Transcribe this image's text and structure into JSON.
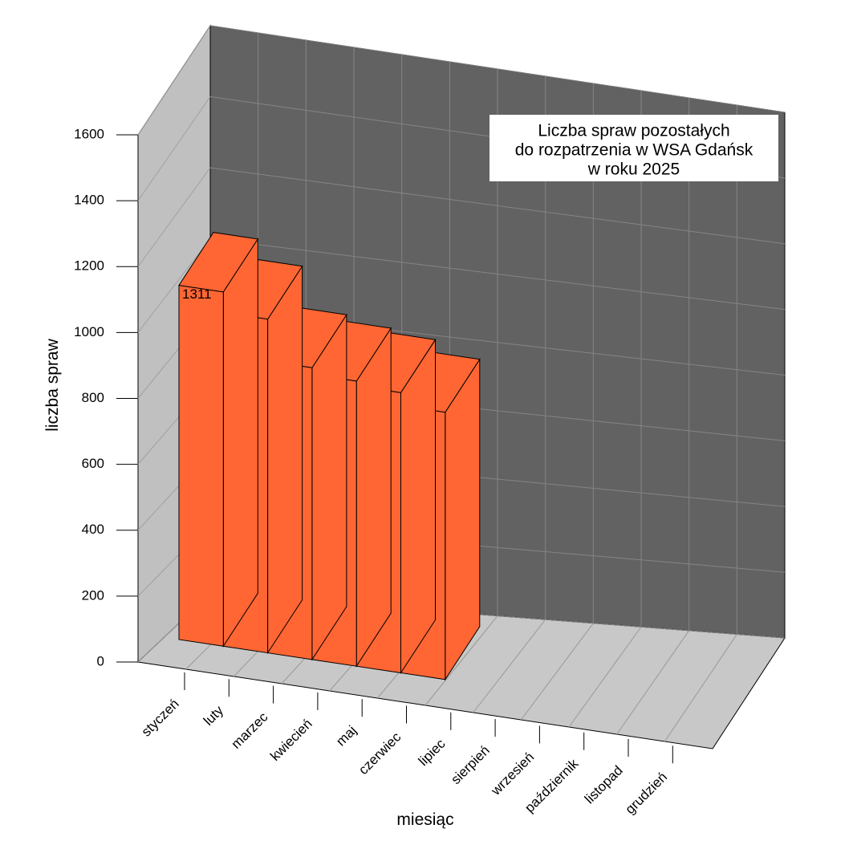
{
  "chart_data": {
    "type": "bar3d",
    "title": [
      "Liczba spraw pozostałych",
      "do rozpatrzenia w  WSA Gdańsk",
      "w roku 2025"
    ],
    "y_label": "liczba spraw",
    "x_label": "miesiąc",
    "categories": [
      "styczeń",
      "luty",
      "marzec",
      "kwiecień",
      "maj",
      "czerwiec",
      "lipiec",
      "sierpień",
      "wrzesień",
      "październik",
      "listopad",
      "grudzień"
    ],
    "values": [
      1311,
      1235,
      1080,
      1055,
      1037,
      989,
      null,
      null,
      null,
      null,
      null,
      null
    ],
    "color": "#ff6633",
    "ylim": [
      0,
      1600
    ],
    "yticks": [
      0,
      200,
      400,
      600,
      800,
      1000,
      1200,
      1400,
      1600
    ],
    "grid": true
  }
}
